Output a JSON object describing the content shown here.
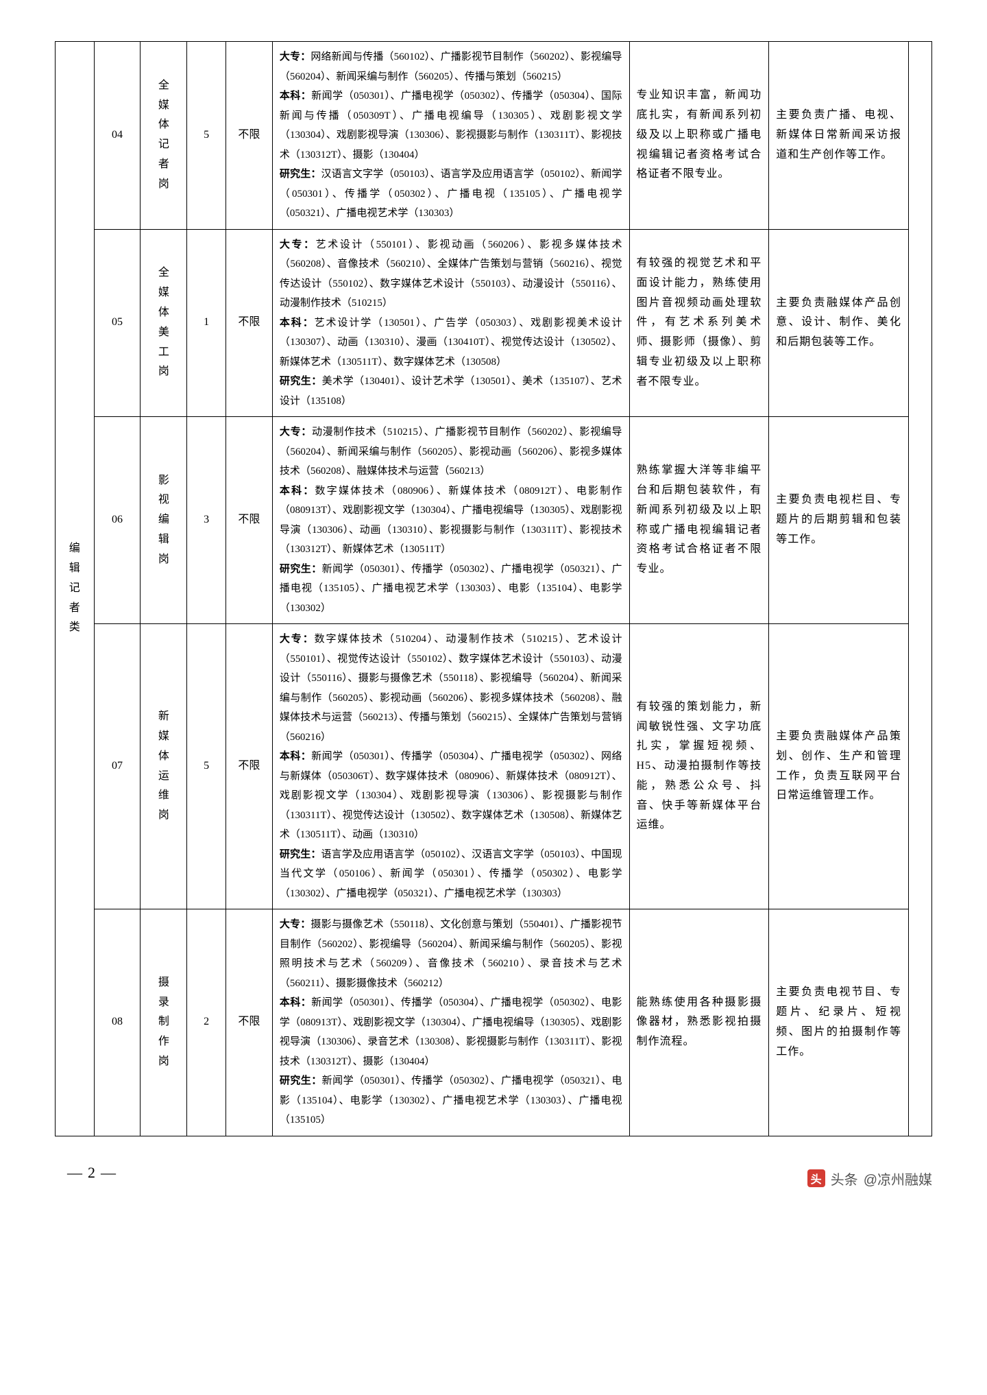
{
  "category": "编辑记者类",
  "rows": [
    {
      "code": "04",
      "name": "全媒体记者岗",
      "count": "5",
      "limit": "不限",
      "major": "<b>大专：</b>网络新闻与传播（560102）、广播影视节目制作（560202）、影视编导（560204）、新闻采编与制作（560205）、传播与策划（560215）<br><b>本科：</b>新闻学（050301）、广播电视学（050302）、传播学（050304）、国际新闻与传播（050309T）、广播电视编导（130305）、戏剧影视文学（130304）、戏剧影视导演（130306）、影视摄影与制作（130311T）、影视技术（130312T）、摄影（130404）<br><b>研究生：</b>汉语言文字学（050103）、语言学及应用语言学（050102）、新闻学（050301）、传播学（050302）、广播电视（135105）、广播电视学（050321）、广播电视艺术学（130303）",
      "req": "专业知识丰富，新闻功底扎实，有新闻系列初级及以上职称或广播电视编辑记者资格考试合格证者不限专业。",
      "duty": "主要负责广播、电视、新媒体日常新闻采访报道和生产创作等工作。"
    },
    {
      "code": "05",
      "name": "全媒体美工岗",
      "count": "1",
      "limit": "不限",
      "major": "<b>大专：</b>艺术设计（550101）、影视动画（560206）、影视多媒体技术（560208）、音像技术（560210）、全媒体广告策划与营销（560216）、视觉传达设计（550102）、数字媒体艺术设计（550103）、动漫设计（550116）、动漫制作技术（510215）<br><b>本科：</b>艺术设计学（130501）、广告学（050303）、戏剧影视美术设计（130307）、动画（130310）、漫画（130410T）、视觉传达设计（130502）、新媒体艺术（130511T）、数字媒体艺术（130508）<br><b>研究生：</b>美术学（130401）、设计艺术学（130501）、美术（135107）、艺术设计（135108）",
      "req": "有较强的视觉艺术和平面设计能力，熟练使用图片音视频动画处理软件，有艺术系列美术师、摄影师（摄像）、剪辑专业初级及以上职称者不限专业。",
      "duty": "主要负责融媒体产品创意、设计、制作、美化和后期包装等工作。"
    },
    {
      "code": "06",
      "name": "影视编辑岗",
      "count": "3",
      "limit": "不限",
      "major": "<b>大专：</b>动漫制作技术（510215）、广播影视节目制作（560202）、影视编导（560204）、新闻采编与制作（560205）、影视动画（560206）、影视多媒体技术（560208）、融媒体技术与运营（560213）<br><b>本科：</b>数字媒体技术（080906）、新媒体技术（080912T）、电影制作（080913T）、戏剧影视文学（130304）、广播电视编导（130305）、戏剧影视导演（130306）、动画（130310）、影视摄影与制作（130311T）、影视技术（130312T）、新媒体艺术（130511T）<br><b>研究生：</b>新闻学（050301）、传播学（050302）、广播电视学（050321）、广播电视（135105）、广播电视艺术学（130303）、电影（135104）、电影学（130302）",
      "req": "熟练掌握大洋等非编平台和后期包装软件，有新闻系列初级及以上职称或广播电视编辑记者资格考试合格证者不限专业。",
      "duty": "主要负责电视栏目、专题片的后期剪辑和包装等工作。"
    },
    {
      "code": "07",
      "name": "新媒体运维岗",
      "count": "5",
      "limit": "不限",
      "major": "<b>大专：</b>数字媒体技术（510204）、动漫制作技术（510215）、艺术设计（550101）、视觉传达设计（550102）、数字媒体艺术设计（550103）、动漫设计（550116）、摄影与摄像艺术（550118）、影视编导（560204）、新闻采编与制作（560205）、影视动画（560206）、影视多媒体技术（560208）、融媒体技术与运营（560213）、传播与策划（560215）、全媒体广告策划与营销（560216）<br><b>本科：</b>新闻学（050301）、传播学（050304）、广播电视学（050302）、网络与新媒体（050306T）、数字媒体技术（080906）、新媒体技术（080912T）、戏剧影视文学（130304）、戏剧影视导演（130306）、影视摄影与制作（130311T）、视觉传达设计（130502）、数字媒体艺术（130508）、新媒体艺术（130511T）、动画（130310）<br><b>研究生：</b>语言学及应用语言学（050102）、汉语言文字学（050103）、中国现当代文学（050106）、新闻学（050301）、传播学（050302）、电影学（130302）、广播电视学（050321）、广播电视艺术学（130303）",
      "req": "有较强的策划能力，新闻敏锐性强、文字功底扎实，掌握短视频、H5、动漫拍摄制作等技能，熟悉公众号、抖音、快手等新媒体平台运维。",
      "duty": "主要负责融媒体产品策划、创作、生产和管理工作，负责互联网平台日常运维管理工作。"
    },
    {
      "code": "08",
      "name": "摄录制作岗",
      "count": "2",
      "limit": "不限",
      "major": "<b>大专：</b>摄影与摄像艺术（550118）、文化创意与策划（550401）、广播影视节目制作（560202）、影视编导（560204）、新闻采编与制作（560205）、影视照明技术与艺术（560209）、音像技术（560210）、录音技术与艺术（560211）、摄影摄像技术（560212）<br><b>本科：</b>新闻学（050301）、传播学（050304）、广播电视学（050302）、电影学（080913T）、戏剧影视文学（130304）、广播电视编导（130305）、戏剧影视导演（130306）、录音艺术（130308）、影视摄影与制作（130311T）、影视技术（130312T）、摄影（130404）<br><b>研究生：</b>新闻学（050301）、传播学（050302）、广播电视学（050321）、电影（135104）、电影学（130302）、广播电视艺术学（130303）、广播电视（135105）",
      "req": "能熟练使用各种摄影摄像器材，熟悉影视拍摄制作流程。",
      "duty": "主要负责电视节目、专题片、纪录片、短视频、图片的拍摄制作等工作。"
    }
  ],
  "pageNumber": "2",
  "watermark": {
    "prefix": "头条",
    "handle": "@凉州融媒"
  }
}
